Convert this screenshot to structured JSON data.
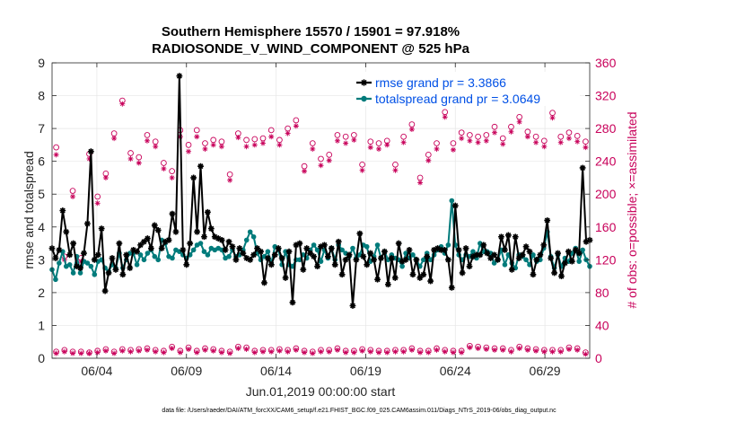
{
  "chart_data": {
    "type": "line",
    "title": "Southern Hemisphere 15570 / 15901 = 97.918%",
    "subtitle": "RADIOSONDE_V_WIND_COMPONENT @ 525 hPa",
    "xlabel": "Jun.01,2019 00:00:00 start",
    "ylabel": "rmse and totalspread",
    "ylabel_right": "# of obs: o=possible; ×=assimilated",
    "footer": "data file: /Users/raeder/DAI/ATM_forcXX/CAM6_setup/f.e21.FHIST_BGC.f09_025.CAM6assim.011/Diags_NTrS_2019-06/obs_diag_output.nc",
    "xlim": [
      1,
      31
    ],
    "ylim": [
      0,
      9
    ],
    "ylim_right": [
      0,
      360
    ],
    "x_ticks": [
      3.5,
      8.5,
      13.5,
      18.5,
      23.5,
      28.5
    ],
    "x_tick_labels": [
      "06/04",
      "06/09",
      "06/14",
      "06/19",
      "06/24",
      "06/29"
    ],
    "y_ticks": [
      0,
      1,
      2,
      3,
      4,
      5,
      6,
      7,
      8,
      9
    ],
    "y_ticks_right": [
      0,
      40,
      80,
      120,
      160,
      200,
      240,
      280,
      320,
      360
    ],
    "grid": true,
    "legend_position": "top-right",
    "colors": {
      "rmse": "#000000",
      "totalspread": "#007b7b",
      "obs": "#c8005a",
      "legend_text": "#0050e6"
    },
    "series": [
      {
        "name": "rmse",
        "legend": "rmse grand pr = 3.3866",
        "values": [
          3.35,
          3.05,
          3.3,
          4.5,
          3.85,
          3.15,
          3.5,
          2.8,
          2.75,
          3.2,
          4.1,
          6.3,
          3.0,
          3.15,
          3.95,
          2.05,
          2.6,
          3.05,
          2.7,
          3.5,
          2.55,
          3.15,
          2.75,
          3.3,
          3.25,
          3.45,
          3.55,
          3.65,
          3.35,
          4.05,
          3.9,
          3.35,
          3.55,
          3.6,
          4.4,
          3.85,
          8.6,
          3.3,
          2.85,
          3.5,
          5.5,
          3.85,
          5.85,
          3.7,
          4.45,
          3.95,
          3.7,
          3.65,
          3.6,
          3.3,
          3.55,
          3.4,
          3.0,
          3.35,
          3.2,
          3.05,
          3.0,
          3.15,
          3.35,
          3.25,
          2.3,
          3.05,
          2.85,
          3.15,
          3.35,
          3.05,
          2.45,
          3.25,
          1.7,
          3.45,
          3.5,
          2.7,
          3.35,
          3.2,
          3.1,
          2.8,
          3.4,
          3.45,
          3.1,
          3.35,
          2.85,
          3.55,
          2.55,
          3.0,
          3.15,
          1.6,
          3.0,
          3.8,
          3.1,
          2.85,
          3.2,
          3.0,
          2.4,
          3.05,
          3.25,
          2.25,
          3.05,
          2.45,
          3.5,
          2.95,
          3.0,
          3.3,
          2.55,
          3.0,
          2.45,
          2.55,
          3.1,
          2.35,
          3.3,
          3.35,
          3.3,
          3.3,
          3.0,
          2.15,
          4.65,
          3.3,
          2.6,
          3.35,
          2.8,
          3.1,
          3.15,
          3.15,
          3.45,
          3.2,
          3.05,
          3.15,
          3.0,
          3.7,
          3.3,
          3.75,
          2.7,
          3.7,
          3.05,
          3.15,
          3.4,
          3.25,
          2.55,
          3.0,
          3.15,
          3.45,
          4.2,
          3.05,
          2.6,
          3.2,
          2.5,
          2.9,
          3.25,
          2.95,
          3.3,
          3.2,
          5.8,
          3.55,
          3.6
        ]
      },
      {
        "name": "totalspread",
        "legend": "totalspread grand pr = 3.0649",
        "values": [
          2.7,
          2.4,
          2.9,
          3.25,
          2.8,
          2.85,
          2.6,
          3.1,
          2.6,
          2.95,
          2.9,
          2.8,
          2.55,
          2.95,
          3.0,
          2.75,
          2.65,
          2.85,
          2.75,
          3.2,
          2.75,
          3.0,
          3.2,
          3.2,
          2.85,
          3.15,
          3.0,
          3.2,
          3.3,
          3.1,
          3.0,
          3.6,
          3.5,
          3.1,
          3.05,
          3.3,
          3.25,
          3.15,
          3.05,
          3.15,
          3.3,
          3.45,
          3.5,
          3.25,
          3.15,
          3.35,
          3.3,
          3.35,
          3.3,
          3.05,
          3.1,
          3.3,
          3.1,
          3.15,
          3.3,
          3.6,
          3.85,
          3.7,
          3.2,
          3.0,
          3.1,
          3.25,
          2.9,
          3.4,
          3.3,
          2.85,
          3.25,
          2.85,
          2.8,
          3.0,
          3.0,
          3.15,
          3.05,
          3.3,
          3.45,
          3.3,
          2.95,
          3.3,
          3.05,
          3.35,
          3.0,
          3.45,
          3.3,
          3.2,
          3.1,
          3.35,
          3.05,
          3.15,
          3.45,
          3.4,
          2.95,
          3.1,
          3.45,
          3.05,
          3.25,
          3.0,
          3.15,
          3.05,
          3.0,
          2.8,
          3.2,
          3.05,
          3.15,
          3.0,
          2.8,
          3.0,
          3.2,
          3.0,
          3.15,
          3.3,
          3.4,
          3.2,
          3.45,
          4.8,
          3.45,
          3.15,
          3.0,
          3.15,
          3.1,
          3.25,
          3.05,
          3.5,
          3.25,
          3.25,
          3.2,
          2.9,
          3.0,
          3.3,
          2.85,
          3.15,
          2.9,
          2.75,
          3.15,
          3.1,
          3.0,
          2.85,
          3.15,
          2.95,
          3.0,
          3.35,
          3.85,
          3.1,
          2.75,
          3.15,
          2.8,
          3.05,
          2.95,
          3.2,
          3.35,
          2.95,
          3.3,
          3.0,
          2.8
        ]
      },
      {
        "name": "obs_possible",
        "marker": "o",
        "axis": "right",
        "values": [
          257,
          124,
          204,
          122,
          249,
          197,
          225,
          274,
          314,
          250,
          245,
          272,
          264,
          238,
          228,
          278,
          260,
          278,
          262,
          266,
          264,
          224,
          274,
          266,
          267,
          268,
          278,
          266,
          280,
          290,
          234,
          262,
          243,
          248,
          272,
          270,
          272,
          236,
          264,
          262,
          265,
          236,
          270,
          285,
          220,
          248,
          262,
          300,
          262,
          275,
          272,
          270,
          272,
          282,
          268,
          282,
          294,
          276,
          270,
          265,
          299,
          270,
          275,
          271,
          264
        ],
        "low_values": [
          8,
          10,
          8,
          8,
          7,
          9,
          11,
          8,
          11,
          10,
          11,
          12,
          10,
          9,
          14,
          9,
          13,
          9,
          12,
          11,
          9,
          8,
          14,
          13,
          9,
          10,
          10,
          11,
          10,
          12,
          9,
          8,
          10,
          10,
          12,
          9,
          9,
          11,
          10,
          9,
          9,
          10,
          10,
          12,
          9,
          9,
          12,
          10,
          9,
          9,
          15,
          14,
          13,
          12,
          12,
          10,
          14,
          12,
          11,
          10,
          10,
          10,
          13,
          12,
          7
        ]
      },
      {
        "name": "obs_assimilated",
        "marker": "*",
        "axis": "right",
        "values": [
          248,
          120,
          197,
          118,
          243,
          189,
          220,
          268,
          310,
          243,
          238,
          265,
          258,
          231,
          220,
          270,
          252,
          270,
          255,
          260,
          258,
          217,
          269,
          258,
          260,
          262,
          270,
          260,
          274,
          283,
          228,
          255,
          235,
          241,
          265,
          262,
          266,
          229,
          257,
          255,
          260,
          229,
          263,
          279,
          214,
          241,
          255,
          294,
          254,
          268,
          265,
          263,
          265,
          275,
          261,
          276,
          288,
          270,
          263,
          258,
          293,
          263,
          268,
          264,
          257
        ],
        "low_values": [
          6,
          8,
          6,
          6,
          6,
          7,
          9,
          6,
          9,
          8,
          9,
          10,
          8,
          7,
          12,
          7,
          11,
          7,
          10,
          9,
          7,
          6,
          12,
          11,
          7,
          8,
          8,
          9,
          8,
          10,
          7,
          6,
          8,
          8,
          10,
          7,
          7,
          9,
          8,
          7,
          7,
          8,
          8,
          10,
          7,
          7,
          10,
          8,
          7,
          7,
          13,
          12,
          11,
          10,
          10,
          8,
          12,
          10,
          9,
          8,
          8,
          8,
          11,
          10,
          5
        ]
      }
    ]
  }
}
